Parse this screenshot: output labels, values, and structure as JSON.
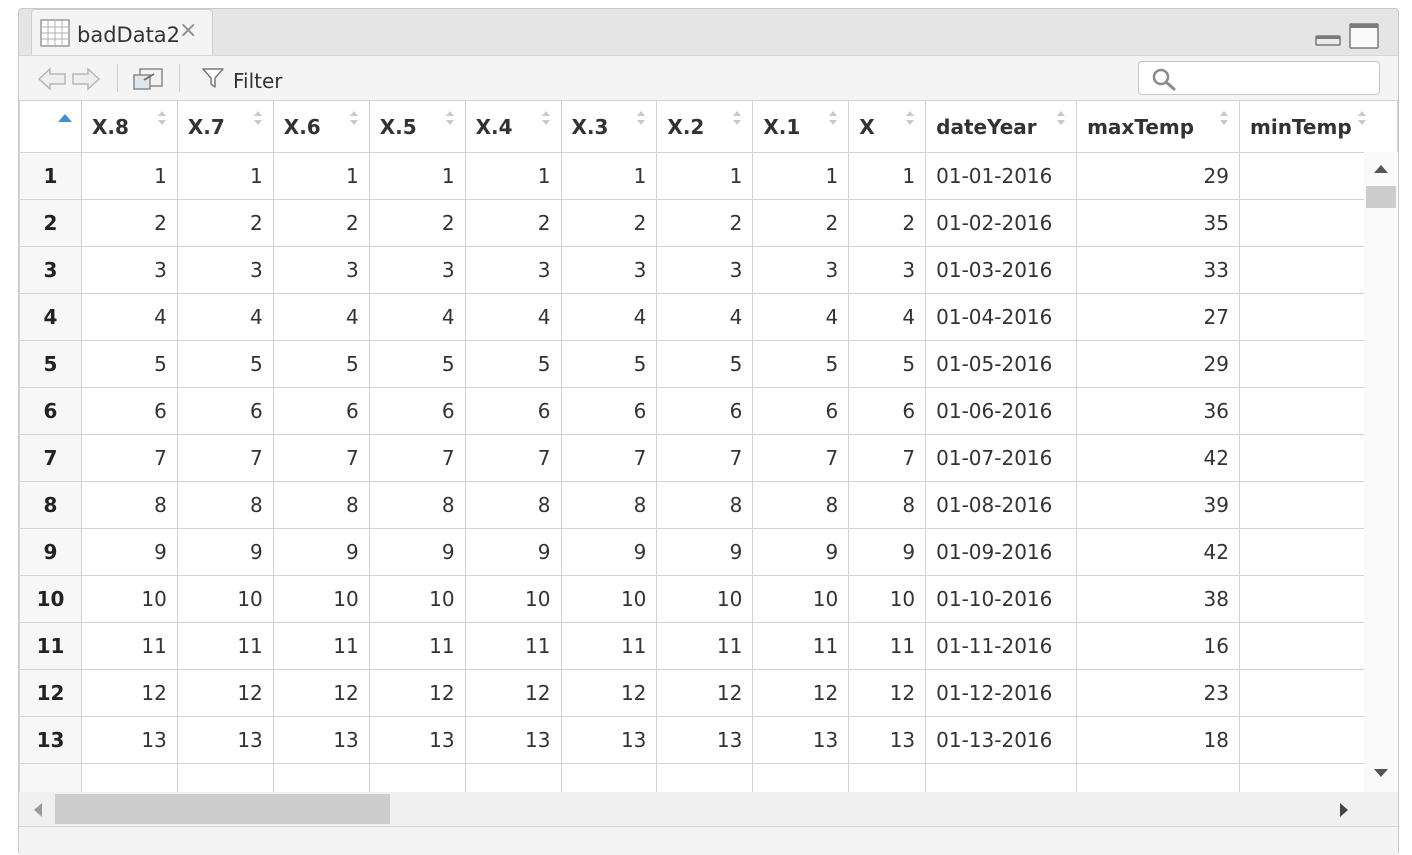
{
  "tab": {
    "title": "badData2",
    "close_glyph": "×",
    "icon": "grid-table-icon"
  },
  "toolbar": {
    "filter_label": "Filter",
    "search_placeholder": ""
  },
  "columns": [
    "X.8",
    "X.7",
    "X.6",
    "X.5",
    "X.4",
    "X.3",
    "X.2",
    "X.1",
    "X",
    "dateYear",
    "maxTemp",
    "minTemp"
  ],
  "rows": [
    {
      "n": "1",
      "vals": [
        "1",
        "1",
        "1",
        "1",
        "1",
        "1",
        "1",
        "1",
        "1"
      ],
      "date": "01-01-2016",
      "max": "29",
      "min": ""
    },
    {
      "n": "2",
      "vals": [
        "2",
        "2",
        "2",
        "2",
        "2",
        "2",
        "2",
        "2",
        "2"
      ],
      "date": "01-02-2016",
      "max": "35",
      "min": ""
    },
    {
      "n": "3",
      "vals": [
        "3",
        "3",
        "3",
        "3",
        "3",
        "3",
        "3",
        "3",
        "3"
      ],
      "date": "01-03-2016",
      "max": "33",
      "min": ""
    },
    {
      "n": "4",
      "vals": [
        "4",
        "4",
        "4",
        "4",
        "4",
        "4",
        "4",
        "4",
        "4"
      ],
      "date": "01-04-2016",
      "max": "27",
      "min": ""
    },
    {
      "n": "5",
      "vals": [
        "5",
        "5",
        "5",
        "5",
        "5",
        "5",
        "5",
        "5",
        "5"
      ],
      "date": "01-05-2016",
      "max": "29",
      "min": ""
    },
    {
      "n": "6",
      "vals": [
        "6",
        "6",
        "6",
        "6",
        "6",
        "6",
        "6",
        "6",
        "6"
      ],
      "date": "01-06-2016",
      "max": "36",
      "min": ""
    },
    {
      "n": "7",
      "vals": [
        "7",
        "7",
        "7",
        "7",
        "7",
        "7",
        "7",
        "7",
        "7"
      ],
      "date": "01-07-2016",
      "max": "42",
      "min": ""
    },
    {
      "n": "8",
      "vals": [
        "8",
        "8",
        "8",
        "8",
        "8",
        "8",
        "8",
        "8",
        "8"
      ],
      "date": "01-08-2016",
      "max": "39",
      "min": ""
    },
    {
      "n": "9",
      "vals": [
        "9",
        "9",
        "9",
        "9",
        "9",
        "9",
        "9",
        "9",
        "9"
      ],
      "date": "01-09-2016",
      "max": "42",
      "min": ""
    },
    {
      "n": "10",
      "vals": [
        "10",
        "10",
        "10",
        "10",
        "10",
        "10",
        "10",
        "10",
        "10"
      ],
      "date": "01-10-2016",
      "max": "38",
      "min": ""
    },
    {
      "n": "11",
      "vals": [
        "11",
        "11",
        "11",
        "11",
        "11",
        "11",
        "11",
        "11",
        "11"
      ],
      "date": "01-11-2016",
      "max": "16",
      "min": ""
    },
    {
      "n": "12",
      "vals": [
        "12",
        "12",
        "12",
        "12",
        "12",
        "12",
        "12",
        "12",
        "12"
      ],
      "date": "01-12-2016",
      "max": "23",
      "min": ""
    },
    {
      "n": "13",
      "vals": [
        "13",
        "13",
        "13",
        "13",
        "13",
        "13",
        "13",
        "13",
        "13"
      ],
      "date": "01-13-2016",
      "max": "18",
      "min": ""
    },
    {
      "n": "",
      "vals": [
        "",
        "",
        "",
        "",
        "",
        "",
        "",
        "",
        ""
      ],
      "date": "",
      "max": "",
      "min": ""
    }
  ],
  "colors": {
    "pane_bg": "#e5e5e5",
    "sort_active": "#3d8fd8",
    "grid_line": "#d3d3d3"
  }
}
